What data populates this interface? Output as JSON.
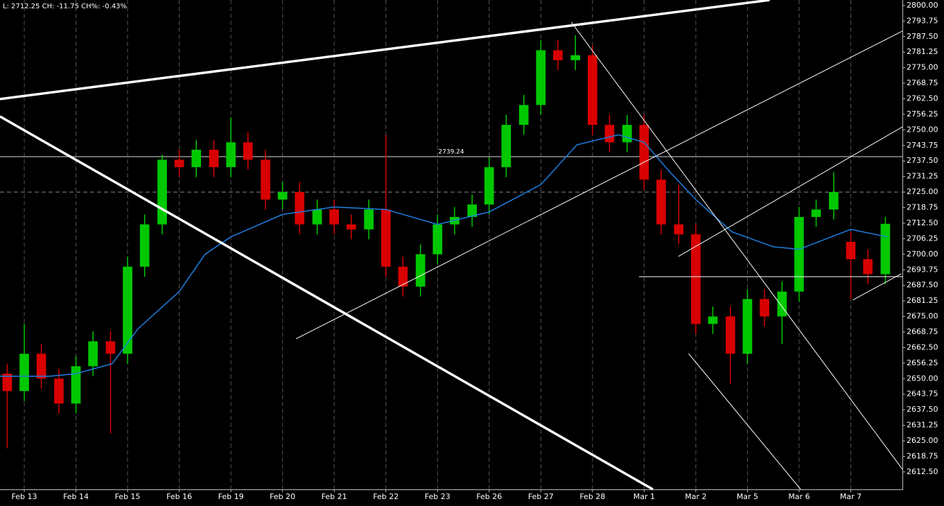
{
  "chart_data": {
    "type": "candlestick",
    "title": "L: 2712.25 CH: -11.75 CH%: -0.43%",
    "xlim": [
      -0.47,
      17.0
    ],
    "xticks": [
      {
        "value": 0,
        "label": "Feb 13"
      },
      {
        "value": 1,
        "label": "Feb 14"
      },
      {
        "value": 2,
        "label": "Feb 15"
      },
      {
        "value": 3,
        "label": "Feb 16"
      },
      {
        "value": 4,
        "label": "Feb 19"
      },
      {
        "value": 5,
        "label": "Feb 20"
      },
      {
        "value": 6,
        "label": "Feb 21"
      },
      {
        "value": 7,
        "label": "Feb 22"
      },
      {
        "value": 8,
        "label": "Feb 23"
      },
      {
        "value": 9,
        "label": "Feb 26"
      },
      {
        "value": 10,
        "label": "Feb 27"
      },
      {
        "value": 11,
        "label": "Feb 28"
      },
      {
        "value": 12,
        "label": "Mar 1"
      },
      {
        "value": 13,
        "label": "Mar 2"
      },
      {
        "value": 14,
        "label": "Mar 5"
      },
      {
        "value": 15,
        "label": "Mar 6"
      },
      {
        "value": 16,
        "label": "Mar 7"
      }
    ],
    "ylim": [
      2605.5,
      2802.2
    ],
    "yticks": [
      {
        "value": 2800,
        "label": "2800.00"
      },
      {
        "value": 2793.75,
        "label": "2793.75"
      },
      {
        "value": 2787.5,
        "label": "2787.50"
      },
      {
        "value": 2781.25,
        "label": "2781.25"
      },
      {
        "value": 2775,
        "label": "2775.00"
      },
      {
        "value": 2768.75,
        "label": "2768.75"
      },
      {
        "value": 2762.5,
        "label": "2762.50"
      },
      {
        "value": 2756.25,
        "label": "2756.25"
      },
      {
        "value": 2750,
        "label": "2750.00"
      },
      {
        "value": 2743.75,
        "label": "2743.75"
      },
      {
        "value": 2737.5,
        "label": "2737.50"
      },
      {
        "value": 2731.25,
        "label": "2731.25"
      },
      {
        "value": 2725,
        "label": "2725.00"
      },
      {
        "value": 2718.75,
        "label": "2718.75"
      },
      {
        "value": 2712.5,
        "label": "2712.50"
      },
      {
        "value": 2706.25,
        "label": "2706.25"
      },
      {
        "value": 2700,
        "label": "2700.00"
      },
      {
        "value": 2693.75,
        "label": "2693.75"
      },
      {
        "value": 2687.5,
        "label": "2687.50"
      },
      {
        "value": 2681.25,
        "label": "2681.25"
      },
      {
        "value": 2675,
        "label": "2675.00"
      },
      {
        "value": 2668.75,
        "label": "2668.75"
      },
      {
        "value": 2662.5,
        "label": "2662.50"
      },
      {
        "value": 2656.25,
        "label": "2656.25"
      },
      {
        "value": 2650,
        "label": "2650.00"
      },
      {
        "value": 2643.75,
        "label": "2643.75"
      },
      {
        "value": 2637.5,
        "label": "2637.50"
      },
      {
        "value": 2631.25,
        "label": "2631.25"
      },
      {
        "value": 2625,
        "label": "2625.00"
      },
      {
        "value": 2618.75,
        "label": "2618.75"
      },
      {
        "value": 2612.5,
        "label": "2612.50"
      }
    ],
    "grid": true,
    "up_color": "#00c800",
    "down_color": "#d80000",
    "x": [
      -0.33,
      0,
      0.33,
      0.67,
      1,
      1.33,
      1.67,
      2,
      2.33,
      2.67,
      3,
      3.33,
      3.67,
      4,
      4.33,
      4.67,
      5,
      5.33,
      5.67,
      6,
      6.33,
      6.67,
      7,
      7.33,
      7.67,
      8,
      8.33,
      8.67,
      9,
      9.33,
      9.67,
      10,
      10.33,
      10.67,
      11,
      11.33,
      11.67,
      12,
      12.33,
      12.67,
      13,
      13.33,
      13.67,
      14,
      14.33,
      14.67,
      15,
      15.33,
      15.67,
      16,
      16.33,
      16.67
    ],
    "open": [
      2652,
      2645,
      2660,
      2650,
      2640,
      2655,
      2665,
      2660,
      2695,
      2712,
      2738,
      2735,
      2742,
      2735,
      2745,
      2738,
      2722,
      2725,
      2712,
      2718,
      2712,
      2710,
      2718,
      2695,
      2687,
      2700,
      2712,
      2715,
      2720,
      2735,
      2752,
      2760,
      2782,
      2778,
      2780,
      2752,
      2745,
      2752,
      2730,
      2712,
      2708,
      2672,
      2675,
      2660,
      2682,
      2675,
      2685,
      2715,
      2718,
      2705,
      2698,
      2692
    ],
    "high": [
      2656,
      2672,
      2664,
      2654,
      2659,
      2669,
      2669,
      2699,
      2716,
      2740,
      2742,
      2746,
      2746,
      2755,
      2749,
      2742,
      2729,
      2729,
      2722,
      2722,
      2716,
      2722,
      2748,
      2699,
      2704,
      2716,
      2719,
      2724,
      2739,
      2756,
      2764,
      2786,
      2786,
      2788,
      2784,
      2756,
      2756,
      2756,
      2734,
      2728,
      2712,
      2679,
      2679,
      2686,
      2686,
      2689,
      2719,
      2722,
      2733,
      2709,
      2702,
      2715
    ],
    "low": [
      2622,
      2641,
      2646,
      2636,
      2636,
      2651,
      2628,
      2656,
      2691,
      2708,
      2731,
      2731,
      2731,
      2731,
      2734,
      2718,
      2718,
      2708,
      2708,
      2708,
      2706,
      2706,
      2691,
      2683,
      2683,
      2696,
      2708,
      2711,
      2716,
      2731,
      2748,
      2756,
      2774,
      2774,
      2748,
      2741,
      2741,
      2726,
      2708,
      2704,
      2668,
      2668,
      2648,
      2656,
      2671,
      2664,
      2681,
      2711,
      2714,
      2682,
      2688,
      2688
    ],
    "close": [
      2645,
      2660,
      2650,
      2640,
      2655,
      2665,
      2660,
      2695,
      2712,
      2738,
      2735,
      2742,
      2735,
      2745,
      2738,
      2722,
      2725,
      2712,
      2718,
      2712,
      2710,
      2718,
      2695,
      2687,
      2700,
      2712,
      2715,
      2720,
      2735,
      2752,
      2760,
      2782,
      2778,
      2780,
      2752,
      2745,
      2752,
      2730,
      2712,
      2708,
      2672,
      2675,
      2660,
      2682,
      2675,
      2685,
      2715,
      2718,
      2725,
      2698,
      2692,
      2712.25
    ],
    "moving_average": {
      "color": "#1e7fe0",
      "x": [
        -0.47,
        0.5,
        1,
        1.7,
        2.2,
        3,
        3.5,
        4,
        5,
        6,
        7,
        8,
        9,
        10,
        10.7,
        11.5,
        12,
        12.5,
        13,
        13.7,
        14.5,
        15,
        15.5,
        16,
        16.7
      ],
      "values": [
        2651,
        2651,
        2652,
        2656,
        2670,
        2685,
        2700,
        2707,
        2716,
        2719,
        2718,
        2712,
        2717,
        2728,
        2744,
        2748,
        2745,
        2733,
        2722,
        2709,
        2703,
        2702,
        2706,
        2710,
        2707
      ]
    },
    "hline": 2739.24,
    "price_line": 2725,
    "trendlines": [
      {
        "style": "thick",
        "x": [
          -0.47,
          14.43
        ],
        "y": [
          2762.4,
          2802.2
        ]
      },
      {
        "style": "thick",
        "x": [
          -0.47,
          12.17
        ],
        "y": [
          2755.4,
          2605.5
        ]
      },
      {
        "style": "thin",
        "x": [
          5.26,
          17.0
        ],
        "y": [
          2666.0,
          2789.7
        ]
      },
      {
        "style": "thin",
        "x": [
          10.59,
          17.0
        ],
        "y": [
          2793.3,
          2613.6
        ]
      },
      {
        "style": "thin",
        "x": [
          12.66,
          17.0
        ],
        "y": [
          2699.1,
          2751.2
        ]
      },
      {
        "style": "thin",
        "x": [
          12.86,
          15.03
        ],
        "y": [
          2660.1,
          2605.5
        ]
      },
      {
        "style": "thin",
        "x": [
          16.04,
          16.98
        ],
        "y": [
          2681.6,
          2692.2
        ]
      },
      {
        "style": "thin",
        "x": [
          11.9,
          17.0
        ],
        "y": [
          2691,
          2691
        ]
      }
    ]
  }
}
